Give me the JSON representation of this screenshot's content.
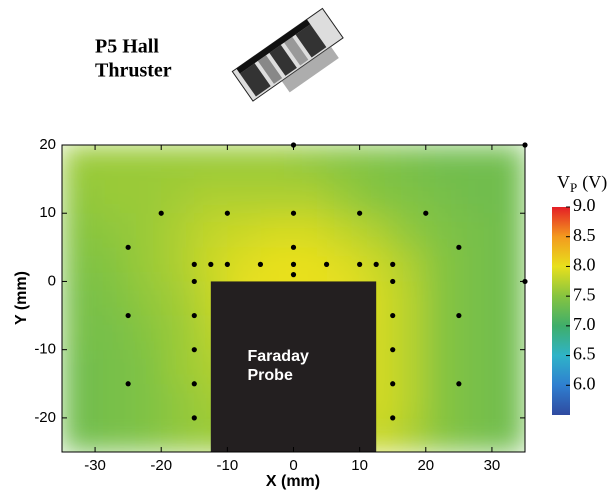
{
  "chart_data": {
    "type": "contour",
    "title_lines": [
      "P5 Hall",
      "Thruster"
    ],
    "x_label": "X (mm)",
    "y_label": "Y (mm)",
    "xlim": [
      -35,
      35
    ],
    "ylim": [
      -25,
      20
    ],
    "xticks": [
      -30,
      -20,
      -10,
      0,
      10,
      20,
      30
    ],
    "yticks": [
      -20,
      -10,
      0,
      10,
      20
    ],
    "field": {
      "x": [
        -32.5,
        -27.5,
        -22.5,
        -17.5,
        -12.5,
        -7.5,
        -2.5,
        2.5,
        7.5,
        12.5,
        17.5,
        22.5,
        27.5,
        32.5
      ],
      "y": [
        17.5,
        12.5,
        7.5,
        2.5,
        -2.5,
        -7.5,
        -12.5,
        -17.5,
        -22.5
      ],
      "z": [
        [
          7.6,
          7.6,
          7.6,
          7.6,
          7.6,
          7.6,
          7.6,
          7.55,
          7.5,
          7.45,
          7.4,
          7.35,
          7.35,
          7.35
        ],
        [
          7.55,
          7.6,
          7.6,
          7.65,
          7.7,
          7.7,
          7.7,
          7.7,
          7.6,
          7.5,
          7.45,
          7.4,
          7.35,
          7.35
        ],
        [
          7.5,
          7.55,
          7.6,
          7.7,
          7.8,
          7.85,
          7.9,
          7.9,
          7.8,
          7.7,
          7.55,
          7.45,
          7.4,
          7.35
        ],
        [
          7.45,
          7.5,
          7.6,
          7.7,
          7.85,
          7.95,
          8.0,
          8.0,
          7.95,
          7.85,
          7.7,
          7.5,
          7.4,
          7.35
        ],
        [
          7.4,
          7.45,
          7.55,
          7.65,
          7.8,
          8.0,
          8.0,
          8.0,
          8.0,
          7.9,
          7.75,
          7.5,
          7.4,
          7.35
        ],
        [
          7.4,
          7.4,
          7.5,
          7.6,
          7.75,
          7.9,
          7.9,
          7.9,
          7.9,
          7.9,
          7.75,
          7.5,
          7.4,
          7.35
        ],
        [
          7.35,
          7.4,
          7.45,
          7.6,
          7.7,
          7.8,
          7.8,
          7.8,
          7.8,
          7.9,
          7.75,
          7.5,
          7.4,
          7.35
        ],
        [
          7.35,
          7.4,
          7.45,
          7.55,
          7.65,
          7.7,
          7.7,
          7.7,
          7.7,
          7.9,
          7.75,
          7.5,
          7.4,
          7.35
        ],
        [
          7.35,
          7.4,
          7.45,
          7.55,
          7.6,
          7.6,
          7.6,
          7.6,
          7.6,
          7.85,
          7.7,
          7.5,
          7.4,
          7.35
        ]
      ]
    },
    "points": {
      "color": "#000000",
      "x": [
        0,
        35,
        -20,
        -10,
        0,
        10,
        20,
        -25,
        0,
        25,
        -15,
        -12.5,
        -10,
        -5,
        0,
        5,
        10,
        12.5,
        15,
        0,
        -15,
        15,
        35,
        -25,
        -15,
        15,
        25,
        -15,
        15,
        -25,
        -15,
        15,
        25,
        -15,
        15
      ],
      "y": [
        20,
        20,
        10,
        10,
        10,
        10,
        10,
        5,
        5,
        5,
        2.5,
        2.5,
        2.5,
        2.5,
        2.5,
        2.5,
        2.5,
        2.5,
        2.5,
        1,
        0,
        0,
        0,
        -5,
        -5,
        -5,
        -5,
        -10,
        -10,
        -15,
        -15,
        -15,
        -15,
        -20,
        -20
      ]
    },
    "probe": {
      "label_lines": [
        "Faraday",
        "Probe"
      ],
      "x": [
        -12.5,
        12.5
      ],
      "y": [
        -25,
        0
      ],
      "color": "#231f20"
    },
    "colorbar": {
      "label": {
        "main": "V",
        "sub": "P",
        "unit": "(V)"
      },
      "clim": [
        5.5,
        9.0
      ],
      "colormap": [
        "#2f4aa0",
        "#2f7fd0",
        "#2fb3c8",
        "#3fae6a",
        "#86c440",
        "#e8e01c",
        "#f39a1e",
        "#e41e26"
      ],
      "ticks": [
        {
          "value": 6,
          "label": "6.0"
        },
        {
          "value": 6.5,
          "label": "6.5"
        },
        {
          "value": 7,
          "label": "7.0"
        },
        {
          "value": 7.5,
          "label": "7.5"
        },
        {
          "value": 8,
          "label": "8.0"
        },
        {
          "value": 8.5,
          "label": "8.5"
        },
        {
          "value": 9,
          "label": "9.0"
        }
      ]
    }
  }
}
